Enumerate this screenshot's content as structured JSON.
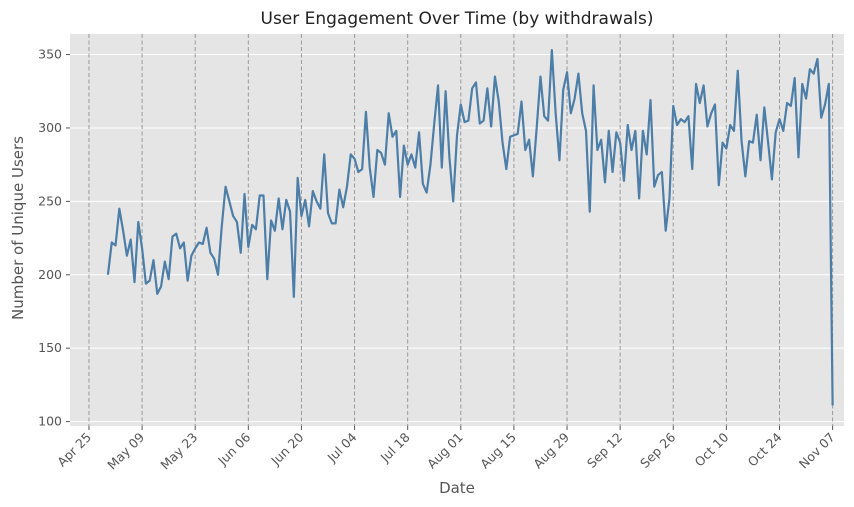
{
  "chart_data": {
    "type": "line",
    "title": "User Engagement Over Time (by withdrawals)",
    "xlabel": "Date",
    "ylabel": "Number of Unique Users",
    "x_tick_labels": [
      "Apr 25",
      "May 09",
      "May 23",
      "Jun 06",
      "Jun 20",
      "Jul 04",
      "Jul 18",
      "Aug 01",
      "Aug 15",
      "Aug 29",
      "Sep 12",
      "Sep 26",
      "Oct 10",
      "Oct 24",
      "Nov 07"
    ],
    "y_ticks": [
      100,
      150,
      200,
      250,
      300,
      350
    ],
    "ylim": [
      97,
      364
    ],
    "xlim": [
      "2023-04-20",
      "2023-11-10"
    ],
    "grid": true,
    "vertical_dashed_lines": [
      "2023-04-25",
      "2023-05-09",
      "2023-05-23",
      "2023-06-06",
      "2023-06-20",
      "2023-07-04",
      "2023-07-18",
      "2023-08-01",
      "2023-08-15",
      "2023-08-29",
      "2023-09-12",
      "2023-09-26",
      "2023-10-10",
      "2023-10-24",
      "2023-11-07"
    ],
    "colors": {
      "line": "#4c7ea8",
      "plot_background": "#e5e5e5",
      "grid": "#ffffff",
      "dashed_lines": "#999999"
    },
    "series": [
      {
        "start_date": "2023-04-30",
        "values": [
          200,
          222,
          220,
          245,
          230,
          213,
          224,
          195,
          236,
          218,
          194,
          196,
          210,
          187,
          192,
          209,
          197,
          226,
          228,
          218,
          222,
          196,
          213,
          218,
          222,
          221,
          232,
          215,
          211,
          200,
          233,
          260,
          250,
          240,
          236,
          215,
          255,
          219,
          234,
          231,
          254,
          254,
          197,
          237,
          230,
          252,
          231,
          251,
          243,
          185,
          266,
          240,
          251,
          233,
          257,
          250,
          245,
          282,
          242,
          235,
          235,
          258,
          246,
          260,
          282,
          279,
          270,
          272,
          311,
          273,
          253,
          285,
          283,
          275,
          310,
          294,
          298,
          253,
          288,
          275,
          282,
          273,
          297,
          262,
          256,
          275,
          303,
          329,
          273,
          325,
          280,
          250,
          295,
          316,
          304,
          305,
          327,
          331,
          303,
          305,
          327,
          301,
          335,
          318,
          290,
          272,
          294,
          295,
          296,
          318,
          285,
          292,
          267,
          300,
          335,
          308,
          305,
          353,
          310,
          278,
          326,
          338,
          310,
          320,
          337,
          310,
          298,
          243,
          329,
          285,
          292,
          263,
          298,
          270,
          297,
          290,
          264,
          302,
          285,
          298,
          252,
          298,
          282,
          319,
          260,
          268,
          270,
          230,
          252,
          315,
          302,
          306,
          304,
          308,
          272,
          330,
          317,
          329,
          301,
          310,
          316,
          261,
          290,
          286,
          302,
          298,
          339,
          291,
          267,
          291,
          290,
          309,
          278,
          314,
          290,
          265,
          297,
          306,
          298,
          317,
          315,
          334,
          280,
          330,
          320,
          340,
          337,
          347,
          307,
          316,
          330,
          111
        ]
      }
    ]
  }
}
